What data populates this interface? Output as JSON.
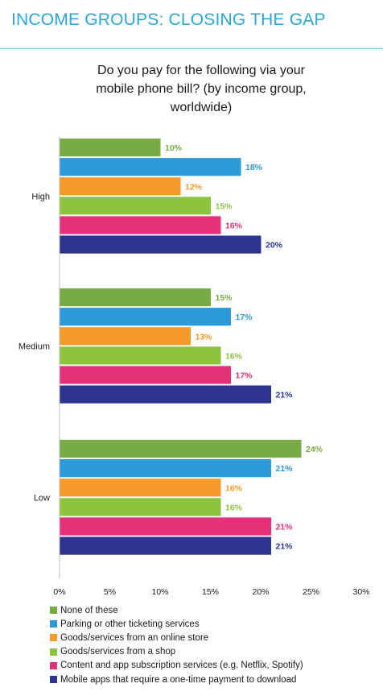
{
  "header": {
    "title": "INCOME GROUPS: CLOSING THE GAP"
  },
  "chart_data": {
    "type": "bar",
    "orientation": "horizontal",
    "title": "Do you pay for the following via your\nmobile phone bill? (by income group,\nworldwide)",
    "categories": [
      "High",
      "Medium",
      "Low"
    ],
    "series": [
      {
        "name": "None of these",
        "color": "#77ac45",
        "values": [
          10,
          15,
          24
        ]
      },
      {
        "name": "Parking or other ticketing services",
        "color": "#2a9ad8",
        "values": [
          18,
          17,
          21
        ]
      },
      {
        "name": "Goods/services from an online store",
        "color": "#f59a2a",
        "values": [
          12,
          13,
          16
        ]
      },
      {
        "name": "Goods/services from a shop",
        "color": "#8dc43f",
        "values": [
          15,
          16,
          16
        ]
      },
      {
        "name": "Content and app subscription services (e.g. Netflix, Spotify)",
        "color": "#e6307a",
        "values": [
          16,
          17,
          21
        ]
      },
      {
        "name": "Mobile apps that require a one-time payment to download",
        "color": "#2e3591",
        "values": [
          20,
          21,
          21
        ]
      }
    ],
    "value_suffix": "%",
    "xlim": [
      0,
      30
    ],
    "x_ticks": [
      "0%",
      "5%",
      "10%",
      "15%",
      "20%",
      "25%",
      "30%"
    ],
    "grid": false,
    "legend_position": "bottom-left"
  }
}
